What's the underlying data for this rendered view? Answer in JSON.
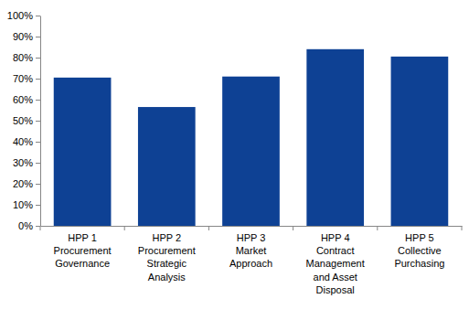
{
  "chart_data": {
    "type": "bar",
    "categories": [
      "HPP 1\nProcurement\nGovernance",
      "HPP 2\nProcurement\nStrategic\nAnalysis",
      "HPP 3\nMarket\nApproach",
      "HPP 4\nContract\nManagement\nand Asset\nDisposal",
      "HPP 5\nCollective\nPurchasing"
    ],
    "values": [
      70.5,
      56.5,
      71,
      84,
      80.5
    ],
    "color": "#0e4194",
    "ylim": [
      0,
      100
    ],
    "yticks": [
      {
        "value": 0,
        "label": "0%"
      },
      {
        "value": 10,
        "label": "10%"
      },
      {
        "value": 20,
        "label": "20%"
      },
      {
        "value": 30,
        "label": "30%"
      },
      {
        "value": 40,
        "label": "40%"
      },
      {
        "value": 50,
        "label": "50%"
      },
      {
        "value": 60,
        "label": "60%"
      },
      {
        "value": 70,
        "label": "70%"
      },
      {
        "value": 80,
        "label": "80%"
      },
      {
        "value": 90,
        "label": "90%"
      },
      {
        "value": 100,
        "label": "100%"
      }
    ],
    "grid": false
  }
}
